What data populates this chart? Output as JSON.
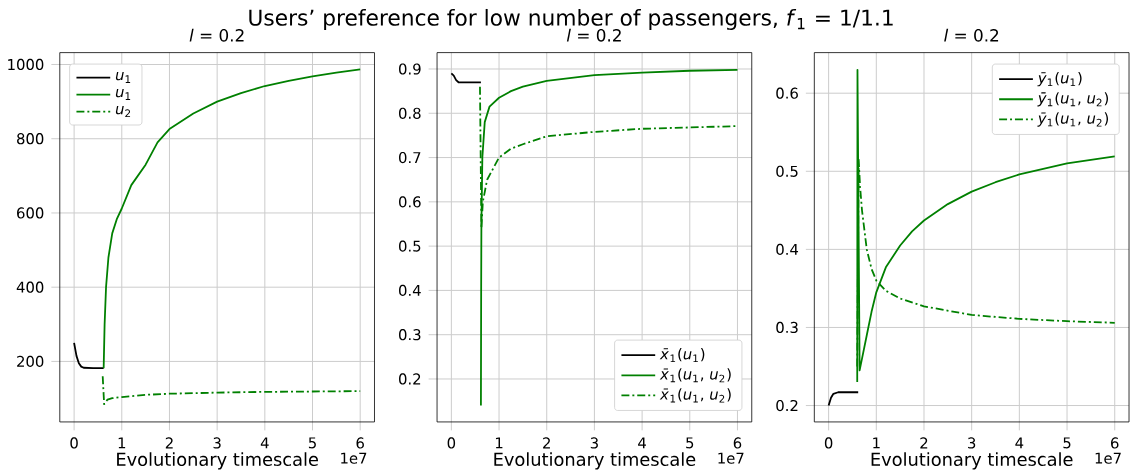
{
  "chart_data": [
    {
      "type": "line",
      "title": "Users’ preference for low number of passengers, *f*$_{1}$ = 1/1.1",
      "subtitle": "*l* = 0.2",
      "xlabel": "Evolutionary timescale",
      "annotations": [
        "1e7"
      ],
      "legend": "top left",
      "grid": true,
      "xlim": [
        -0.3,
        6.3
      ],
      "ylim": [
        37,
        1032
      ],
      "xticks": [
        0,
        1,
        2,
        3,
        4,
        5,
        6
      ],
      "yticks": [
        200,
        400,
        600,
        800,
        1000
      ],
      "series": [
        {
          "name": "*u*$_{1}$",
          "color": "#000000",
          "line_style": "solid",
          "x": [
            0,
            0.05,
            0.1,
            0.15,
            0.2,
            0.4,
            0.62
          ],
          "values": [
            250,
            215,
            195,
            186,
            183,
            182,
            182
          ]
        },
        {
          "name": "*u*$_{1}$",
          "color": "#008000",
          "line_style": "solid",
          "x": [
            0.62,
            0.64,
            0.67,
            0.72,
            0.8,
            0.9,
            1.0,
            1.2,
            1.5,
            1.75,
            2.0,
            2.5,
            3.0,
            3.5,
            4.0,
            4.5,
            5.0,
            5.5,
            6.0
          ],
          "values": [
            182,
            300,
            400,
            480,
            545,
            585,
            612,
            675,
            730,
            790,
            826,
            868,
            900,
            923,
            942,
            956,
            968,
            978,
            987
          ]
        },
        {
          "name": "*u*$_{2}$",
          "color": "#008000",
          "line_style": "dashdot",
          "x": [
            0.6,
            0.63,
            0.7,
            0.8,
            1.0,
            1.5,
            2.0,
            3.0,
            4.0,
            5.0,
            6.0
          ],
          "values": [
            160,
            85,
            97,
            101,
            104,
            110,
            113,
            116,
            118,
            119,
            120
          ]
        }
      ]
    },
    {
      "type": "line",
      "title": "*l* = 0.2",
      "xlabel": "Evolutionary timescale",
      "annotations": [
        "1e7"
      ],
      "legend": "bottom right",
      "grid": true,
      "xlim": [
        -0.3,
        6.3
      ],
      "ylim": [
        0.103,
        0.937
      ],
      "xticks": [
        0,
        1,
        2,
        3,
        4,
        5,
        6
      ],
      "yticks": [
        0.2,
        0.3,
        0.4,
        0.5,
        0.6,
        0.7,
        0.8,
        0.9
      ],
      "series": [
        {
          "name": "*x̄*$_{1}$(*u*$_{1}$)",
          "color": "#000000",
          "line_style": "solid",
          "x": [
            0,
            0.05,
            0.1,
            0.15,
            0.3,
            0.62
          ],
          "values": [
            0.89,
            0.885,
            0.875,
            0.87,
            0.87,
            0.87
          ]
        },
        {
          "name": "*x̄*$_{1}$(*u*$_{1}$, *u*$_{2}$)",
          "color": "#008000",
          "line_style": "solid",
          "x": [
            0.62,
            0.625,
            0.63,
            0.65,
            0.7,
            0.8,
            1.0,
            1.25,
            1.5,
            2.0,
            3.0,
            4.0,
            5.0,
            6.0
          ],
          "values": [
            0.14,
            0.4,
            0.55,
            0.7,
            0.78,
            0.815,
            0.835,
            0.85,
            0.86,
            0.873,
            0.886,
            0.892,
            0.896,
            0.898
          ]
        },
        {
          "name": "*x̄*$_{1}$(*u*$_{1}$, *u*$_{2}$)",
          "color": "#008000",
          "line_style": "dashdot",
          "x": [
            0.6,
            0.63,
            0.66,
            0.75,
            1.0,
            1.25,
            1.5,
            2.0,
            3.0,
            4.0,
            5.0,
            6.0
          ],
          "values": [
            0.86,
            0.54,
            0.6,
            0.65,
            0.7,
            0.72,
            0.73,
            0.748,
            0.758,
            0.765,
            0.768,
            0.771
          ]
        }
      ]
    },
    {
      "type": "line",
      "title": "*l* = 0.2",
      "xlabel": "Evolutionary timescale",
      "annotations": [
        "1e7"
      ],
      "legend": "top right",
      "grid": true,
      "xlim": [
        -0.3,
        6.3
      ],
      "ylim": [
        0.179,
        0.652
      ],
      "xticks": [
        0,
        1,
        2,
        3,
        4,
        5,
        6
      ],
      "yticks": [
        0.2,
        0.3,
        0.4,
        0.5,
        0.6
      ],
      "series": [
        {
          "name": "*ȳ*$_{1}$(*u*$_{1}$)",
          "color": "#000000",
          "line_style": "solid",
          "x": [
            0,
            0.05,
            0.1,
            0.2,
            0.4,
            0.62
          ],
          "values": [
            0.2,
            0.21,
            0.215,
            0.217,
            0.217,
            0.217
          ]
        },
        {
          "name": "*ȳ*$_{1}$(*u*$_{1}$, *u*$_{2}$)",
          "color": "#008000",
          "line_style": "solid",
          "x": [
            0.6,
            0.605,
            0.65,
            0.7,
            0.8,
            0.9,
            1.0,
            1.2,
            1.5,
            1.75,
            2.0,
            2.5,
            3.0,
            3.5,
            4.0,
            5.0,
            6.0
          ],
          "values": [
            0.23,
            0.63,
            0.245,
            0.26,
            0.29,
            0.32,
            0.345,
            0.377,
            0.405,
            0.423,
            0.437,
            0.458,
            0.474,
            0.486,
            0.496,
            0.51,
            0.519
          ]
        },
        {
          "name": "*ȳ*$_{1}$(*u*$_{1}$, *u*$_{2}$)",
          "color": "#008000",
          "line_style": "dashdot",
          "x": [
            0.6,
            0.63,
            0.66,
            0.7,
            0.8,
            0.9,
            1.0,
            1.2,
            1.5,
            2.0,
            3.0,
            4.0,
            5.0,
            6.0
          ],
          "values": [
            0.25,
            0.515,
            0.48,
            0.45,
            0.4,
            0.375,
            0.36,
            0.347,
            0.337,
            0.327,
            0.316,
            0.311,
            0.308,
            0.306
          ]
        }
      ]
    }
  ]
}
